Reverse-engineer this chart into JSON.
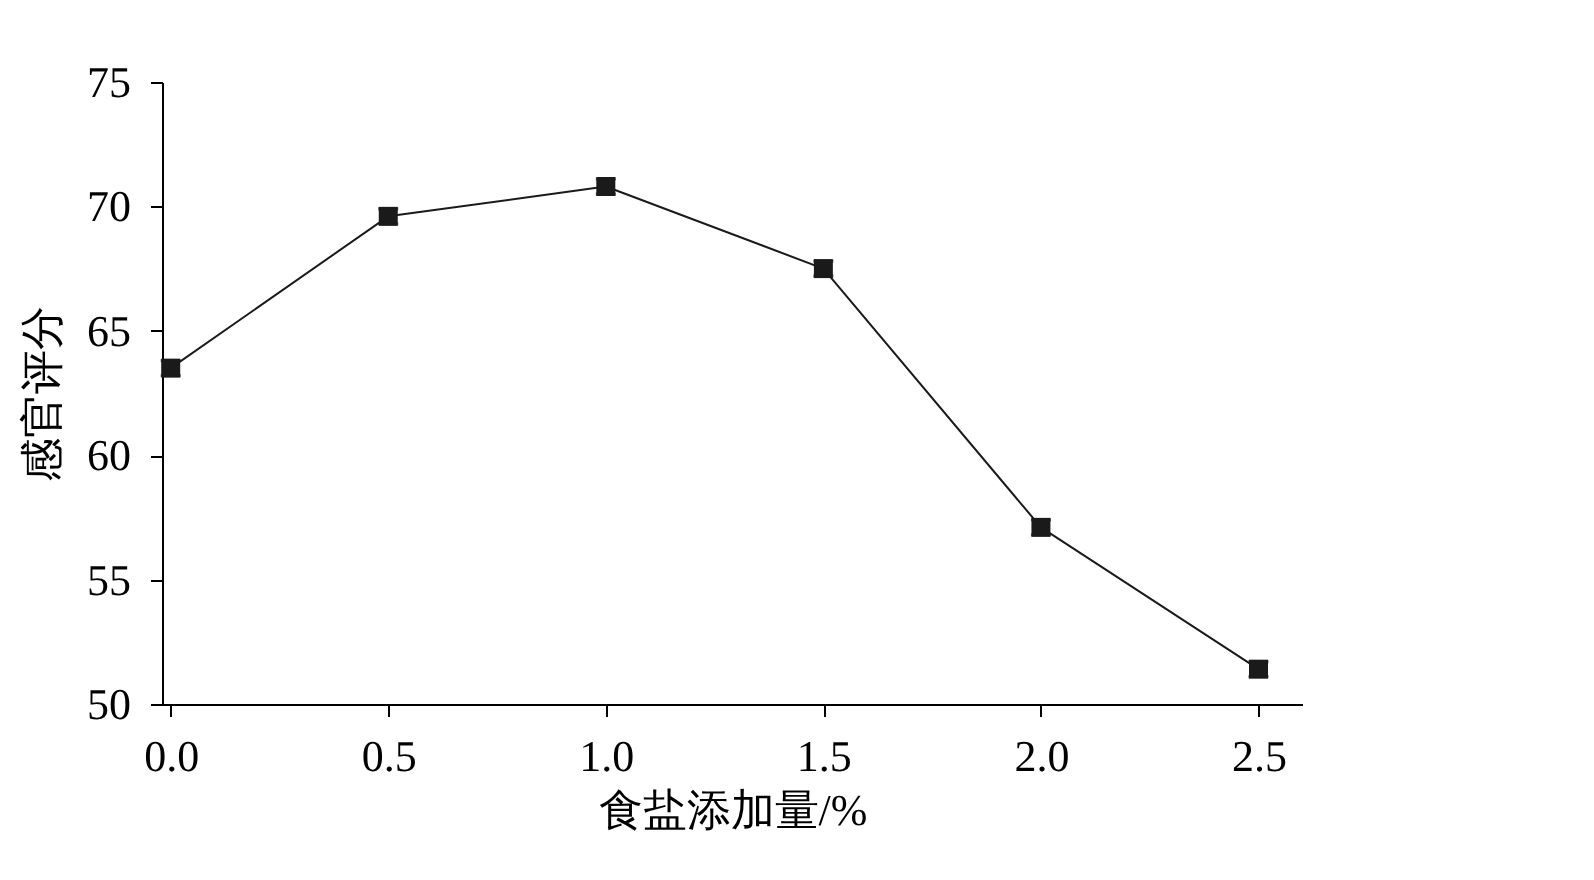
{
  "chart_data": {
    "type": "line",
    "xlabel": "食盐添加量/%",
    "ylabel": "感官评分",
    "x": [
      0.0,
      0.5,
      1.0,
      1.5,
      2.0,
      2.5
    ],
    "series": [
      {
        "color": "#1a1a1a",
        "values": [
          63.5,
          69.6,
          70.8,
          67.5,
          57.1,
          51.4
        ],
        "errors": [
          0.3,
          0.3,
          0.3,
          0.3,
          0.3,
          0.3
        ]
      }
    ],
    "xlim": [
      -0.02,
      2.6
    ],
    "xticks": [
      {
        "value": 0,
        "label": "0.0"
      },
      0.5,
      {
        "value": 1,
        "label": "1.0"
      },
      1.5,
      {
        "value": 2,
        "label": "2.0"
      },
      2.5
    ],
    "ylim": [
      50,
      75
    ],
    "yticks": [
      50,
      55,
      60,
      65,
      70,
      75
    ],
    "grid": false,
    "marker": "square",
    "line_style": "solid"
  }
}
